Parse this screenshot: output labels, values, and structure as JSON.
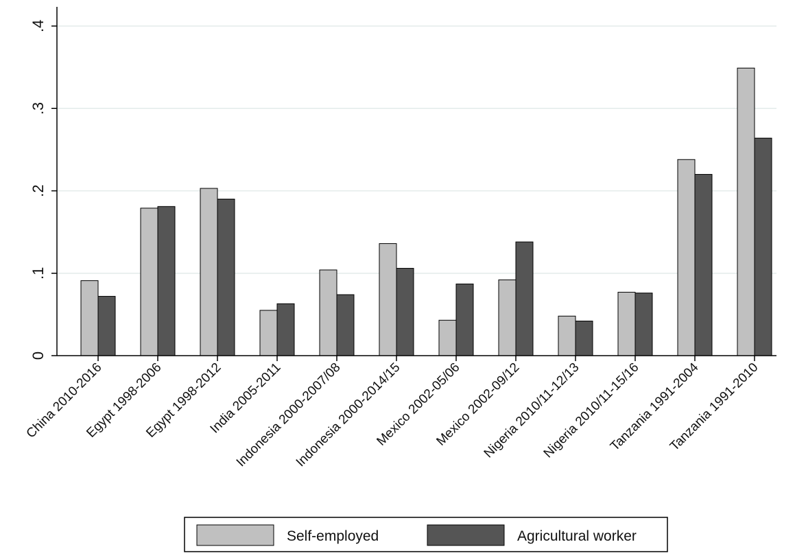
{
  "chart_data": {
    "type": "bar",
    "title": "",
    "xlabel": "",
    "ylabel": "",
    "ylim": [
      0,
      0.4
    ],
    "yticks": [
      {
        "value": 0,
        "label": "0"
      },
      {
        "value": 0.1,
        "label": ".1"
      },
      {
        "value": 0.2,
        "label": ".2"
      },
      {
        "value": 0.3,
        "label": ".3"
      },
      {
        "value": 0.4,
        "label": ".4"
      }
    ],
    "grid": true,
    "legend_position": "bottom",
    "categories": [
      "China 2010-2016",
      "Egypt 1998-2006",
      "Egypt 1998-2012",
      "India 2005-2011",
      "Indonesia 2000-2007/08",
      "Indonesia 2000-2014/15",
      "Mexico 2002-05/06",
      "Mexico 2002-09/12",
      "Nigeria 2010/11-12/13",
      "Nigeria 2010/11-15/16",
      "Tanzania 1991-2004",
      "Tanzania 1991-2010"
    ],
    "series": [
      {
        "name": "Self-employed",
        "color": "#c0c0c0",
        "values": [
          0.091,
          0.179,
          0.203,
          0.055,
          0.104,
          0.136,
          0.043,
          0.092,
          0.048,
          0.077,
          0.238,
          0.349
        ]
      },
      {
        "name": "Agricultural worker",
        "color": "#555555",
        "values": [
          0.072,
          0.181,
          0.19,
          0.063,
          0.074,
          0.106,
          0.087,
          0.138,
          0.042,
          0.076,
          0.22,
          0.264
        ]
      }
    ]
  }
}
